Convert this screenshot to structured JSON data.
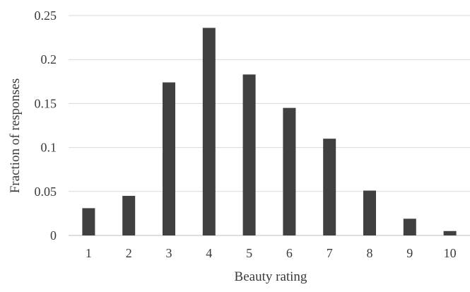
{
  "chart_data": {
    "type": "bar",
    "title": "",
    "xlabel": "Beauty rating",
    "ylabel": "Fraction of responses",
    "categories": [
      "1",
      "2",
      "3",
      "4",
      "5",
      "6",
      "7",
      "8",
      "9",
      "10"
    ],
    "values": [
      0.031,
      0.045,
      0.174,
      0.236,
      0.183,
      0.145,
      0.11,
      0.051,
      0.019,
      0.005
    ],
    "ylim": [
      0,
      0.25
    ],
    "yticks": [
      "0",
      "0.05",
      "0.1",
      "0.15",
      "0.2",
      "0.25"
    ],
    "grid": "horizontal",
    "legend": "none",
    "bar_color": "#404040",
    "grid_color": "#d9d9d9",
    "axis_color": "#bfbfbf"
  }
}
